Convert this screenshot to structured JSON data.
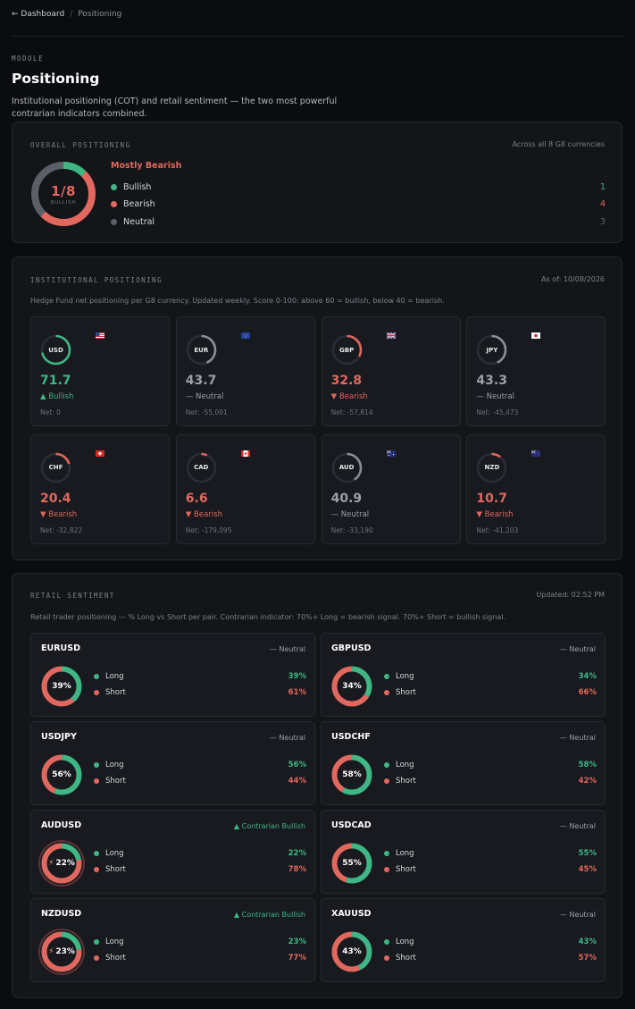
{
  "breadcrumb": {
    "back": "← Dashboard",
    "sep": "/",
    "current": "Positioning"
  },
  "module_label": "MODULE",
  "title": "Positioning",
  "subtitle": "Institutional positioning (COT) and retail sentiment — the two most powerful contrarian indicators combined.",
  "colors": {
    "bullish": "#3fb683",
    "bearish": "#e0685f",
    "neutral": "#5b5f67",
    "text_neutral": "#9ba0a8"
  },
  "overall": {
    "label": "OVERALL POSITIONING",
    "scope": "Across all 8 G8 currencies",
    "ratio": "1/8",
    "ratio_caption": "BULLISH",
    "headline": "Mostly Bearish",
    "legend": [
      {
        "label": "Bullish",
        "count": "1",
        "color": "#3fb683"
      },
      {
        "label": "Bearish",
        "count": "4",
        "color": "#e0685f"
      },
      {
        "label": "Neutral",
        "count": "3",
        "color": "#5b5f67"
      }
    ]
  },
  "institutional": {
    "label": "INSTITUTIONAL POSITIONING",
    "as_of": "As of: 10/08/2026",
    "description": "Hedge Fund net positioning per G8 currency. Updated weekly. Score 0-100: above 60 = bullish, below 40 = bearish.",
    "currencies": [
      {
        "code": "USD",
        "score": "71.7",
        "score_value": 71.7,
        "bias": "▲ Bullish",
        "sentiment": "bullish",
        "net": "Net: 0",
        "flag": "us"
      },
      {
        "code": "EUR",
        "score": "43.7",
        "score_value": 43.7,
        "bias": "— Neutral",
        "sentiment": "neutral",
        "net": "Net: -55,091",
        "flag": "eu"
      },
      {
        "code": "GBP",
        "score": "32.8",
        "score_value": 32.8,
        "bias": "▼ Bearish",
        "sentiment": "bearish",
        "net": "Net: -57,814",
        "flag": "gb"
      },
      {
        "code": "JPY",
        "score": "43.3",
        "score_value": 43.3,
        "bias": "— Neutral",
        "sentiment": "neutral",
        "net": "Net: -45,473",
        "flag": "jp"
      },
      {
        "code": "CHF",
        "score": "20.4",
        "score_value": 20.4,
        "bias": "▼ Bearish",
        "sentiment": "bearish",
        "net": "Net: -32,822",
        "flag": "ch"
      },
      {
        "code": "CAD",
        "score": "6.6",
        "score_value": 6.6,
        "bias": "▼ Bearish",
        "sentiment": "bearish",
        "net": "Net: -179,095",
        "flag": "ca"
      },
      {
        "code": "AUD",
        "score": "40.9",
        "score_value": 40.9,
        "bias": "— Neutral",
        "sentiment": "neutral",
        "net": "Net: -33,190",
        "flag": "au"
      },
      {
        "code": "NZD",
        "score": "10.7",
        "score_value": 10.7,
        "bias": "▼ Bearish",
        "sentiment": "bearish",
        "net": "Net: -41,203",
        "flag": "nz"
      }
    ]
  },
  "retail": {
    "label": "RETAIL SENTIMENT",
    "updated": "Updated: 02:52 PM",
    "description": "Retail trader positioning — % Long vs Short per pair. Contrarian indicator: 70%+ Long = bearish signal. 70%+ Short = bullish signal.",
    "long_label": "Long",
    "short_label": "Short",
    "pairs": [
      {
        "pair": "EURUSD",
        "signal": "— Neutral",
        "signal_type": "neutral",
        "long": 39,
        "short": 61,
        "center": "39%",
        "long_text": "39%",
        "short_text": "61%",
        "extreme": false
      },
      {
        "pair": "GBPUSD",
        "signal": "— Neutral",
        "signal_type": "neutral",
        "long": 34,
        "short": 66,
        "center": "34%",
        "long_text": "34%",
        "short_text": "66%",
        "extreme": false
      },
      {
        "pair": "USDJPY",
        "signal": "— Neutral",
        "signal_type": "neutral",
        "long": 56,
        "short": 44,
        "center": "56%",
        "long_text": "56%",
        "short_text": "44%",
        "extreme": false
      },
      {
        "pair": "USDCHF",
        "signal": "— Neutral",
        "signal_type": "neutral",
        "long": 58,
        "short": 42,
        "center": "58%",
        "long_text": "58%",
        "short_text": "42%",
        "extreme": false
      },
      {
        "pair": "AUDUSD",
        "signal": "▲ Contrarian Bullish",
        "signal_type": "bullish",
        "long": 22,
        "short": 78,
        "center": "22%",
        "long_text": "22%",
        "short_text": "78%",
        "extreme": true
      },
      {
        "pair": "USDCAD",
        "signal": "— Neutral",
        "signal_type": "neutral",
        "long": 55,
        "short": 45,
        "center": "55%",
        "long_text": "55%",
        "short_text": "45%",
        "extreme": false
      },
      {
        "pair": "NZDUSD",
        "signal": "▲ Contrarian Bullish",
        "signal_type": "bullish",
        "long": 23,
        "short": 77,
        "center": "23%",
        "long_text": "23%",
        "short_text": "77%",
        "extreme": true
      },
      {
        "pair": "XAUUSD",
        "signal": "— Neutral",
        "signal_type": "neutral",
        "long": 43,
        "short": 57,
        "center": "43%",
        "long_text": "43%",
        "short_text": "57%",
        "extreme": false
      }
    ]
  }
}
